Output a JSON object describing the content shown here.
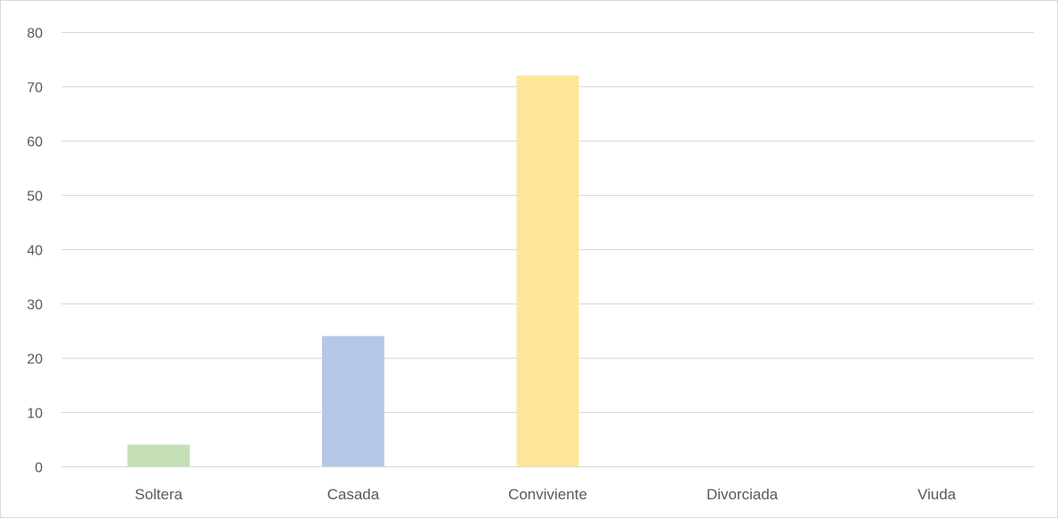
{
  "chart_data": {
    "type": "bar",
    "title": "",
    "xlabel": "",
    "ylabel": "",
    "categories": [
      "Soltera",
      "Casada",
      "Conviviente",
      "Divorciada",
      "Viuda"
    ],
    "values": [
      4,
      24,
      72,
      0,
      0
    ],
    "colors": [
      "#c5e0b4",
      "#b4c7e7",
      "#ffe699",
      "#f8cbad",
      "#d9d9d9"
    ],
    "ylim": [
      0,
      80
    ],
    "yticks": [
      0,
      10,
      20,
      30,
      40,
      50,
      60,
      70,
      80
    ],
    "grid": true,
    "legend": "none"
  }
}
